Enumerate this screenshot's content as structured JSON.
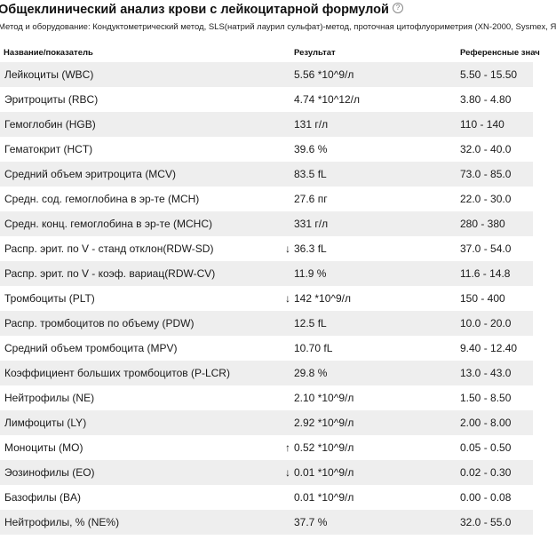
{
  "title": "Общеклинический анализ крови с лейкоцитарной формулой",
  "help_icon": "question-circle-icon",
  "method": "Метод и оборудование: Кондуктометрический метод, SLS(натрий лаурил сульфат)-метод, проточная цитофлуориметрия (XN-2000, Sysmex, Я",
  "columns": {
    "name": "Название/показатель",
    "result": "Результат",
    "reference": "Референсные знач"
  },
  "arrows": {
    "down": "↓",
    "up": "↑"
  },
  "rows": [
    {
      "name": "Лейкоциты (WBC)",
      "result": "5.56 *10^9/л",
      "ref": "5.50 - 15.50",
      "flag": ""
    },
    {
      "name": "Эритроциты (RBC)",
      "result": "4.74 *10^12/л",
      "ref": "3.80 - 4.80",
      "flag": ""
    },
    {
      "name": "Гемоглобин (HGB)",
      "result": "131 г/л",
      "ref": "110 - 140",
      "flag": ""
    },
    {
      "name": "Гематокрит (HCT)",
      "result": "39.6 %",
      "ref": "32.0 - 40.0",
      "flag": ""
    },
    {
      "name": "Средний объем эритроцита (MCV)",
      "result": "83.5 fL",
      "ref": "73.0 - 85.0",
      "flag": ""
    },
    {
      "name": "Средн. сод. гемоглобина в эр-те (MCH)",
      "result": "27.6 пг",
      "ref": "22.0 - 30.0",
      "flag": ""
    },
    {
      "name": "Средн. конц. гемоглобина в эр-те (MCHC)",
      "result": "331 г/л",
      "ref": "280 - 380",
      "flag": ""
    },
    {
      "name": "Распр. эрит. по V - станд отклон(RDW-SD)",
      "result": "36.3 fL",
      "ref": "37.0 - 54.0",
      "flag": "down"
    },
    {
      "name": "Распр. эрит. по V - коэф. вариац(RDW-CV)",
      "result": "11.9 %",
      "ref": "11.6 - 14.8",
      "flag": ""
    },
    {
      "name": "Тромбоциты (PLT)",
      "result": "142 *10^9/л",
      "ref": "150 - 400",
      "flag": "down"
    },
    {
      "name": "Распр. тромбоцитов по объему (PDW)",
      "result": "12.5 fL",
      "ref": "10.0 - 20.0",
      "flag": ""
    },
    {
      "name": "Средний объем тромбоцита (MPV)",
      "result": "10.70 fL",
      "ref": "9.40 - 12.40",
      "flag": ""
    },
    {
      "name": "Коэффициент больших тромбоцитов (P-LCR)",
      "result": "29.8 %",
      "ref": "13.0 - 43.0",
      "flag": ""
    },
    {
      "name": "Нейтрофилы (NE)",
      "result": "2.10 *10^9/л",
      "ref": "1.50 - 8.50",
      "flag": ""
    },
    {
      "name": "Лимфоциты (LY)",
      "result": "2.92 *10^9/л",
      "ref": "2.00 - 8.00",
      "flag": ""
    },
    {
      "name": "Моноциты (MO)",
      "result": "0.52 *10^9/л",
      "ref": "0.05 - 0.50",
      "flag": "up"
    },
    {
      "name": "Эозинофилы (EO)",
      "result": "0.01 *10^9/л",
      "ref": "0.02 - 0.30",
      "flag": "down"
    },
    {
      "name": "Базофилы (BA)",
      "result": "0.01 *10^9/л",
      "ref": "0.00 - 0.08",
      "flag": ""
    },
    {
      "name": "Нейтрофилы, % (NE%)",
      "result": "37.7 %",
      "ref": "32.0 - 55.0",
      "flag": ""
    }
  ]
}
